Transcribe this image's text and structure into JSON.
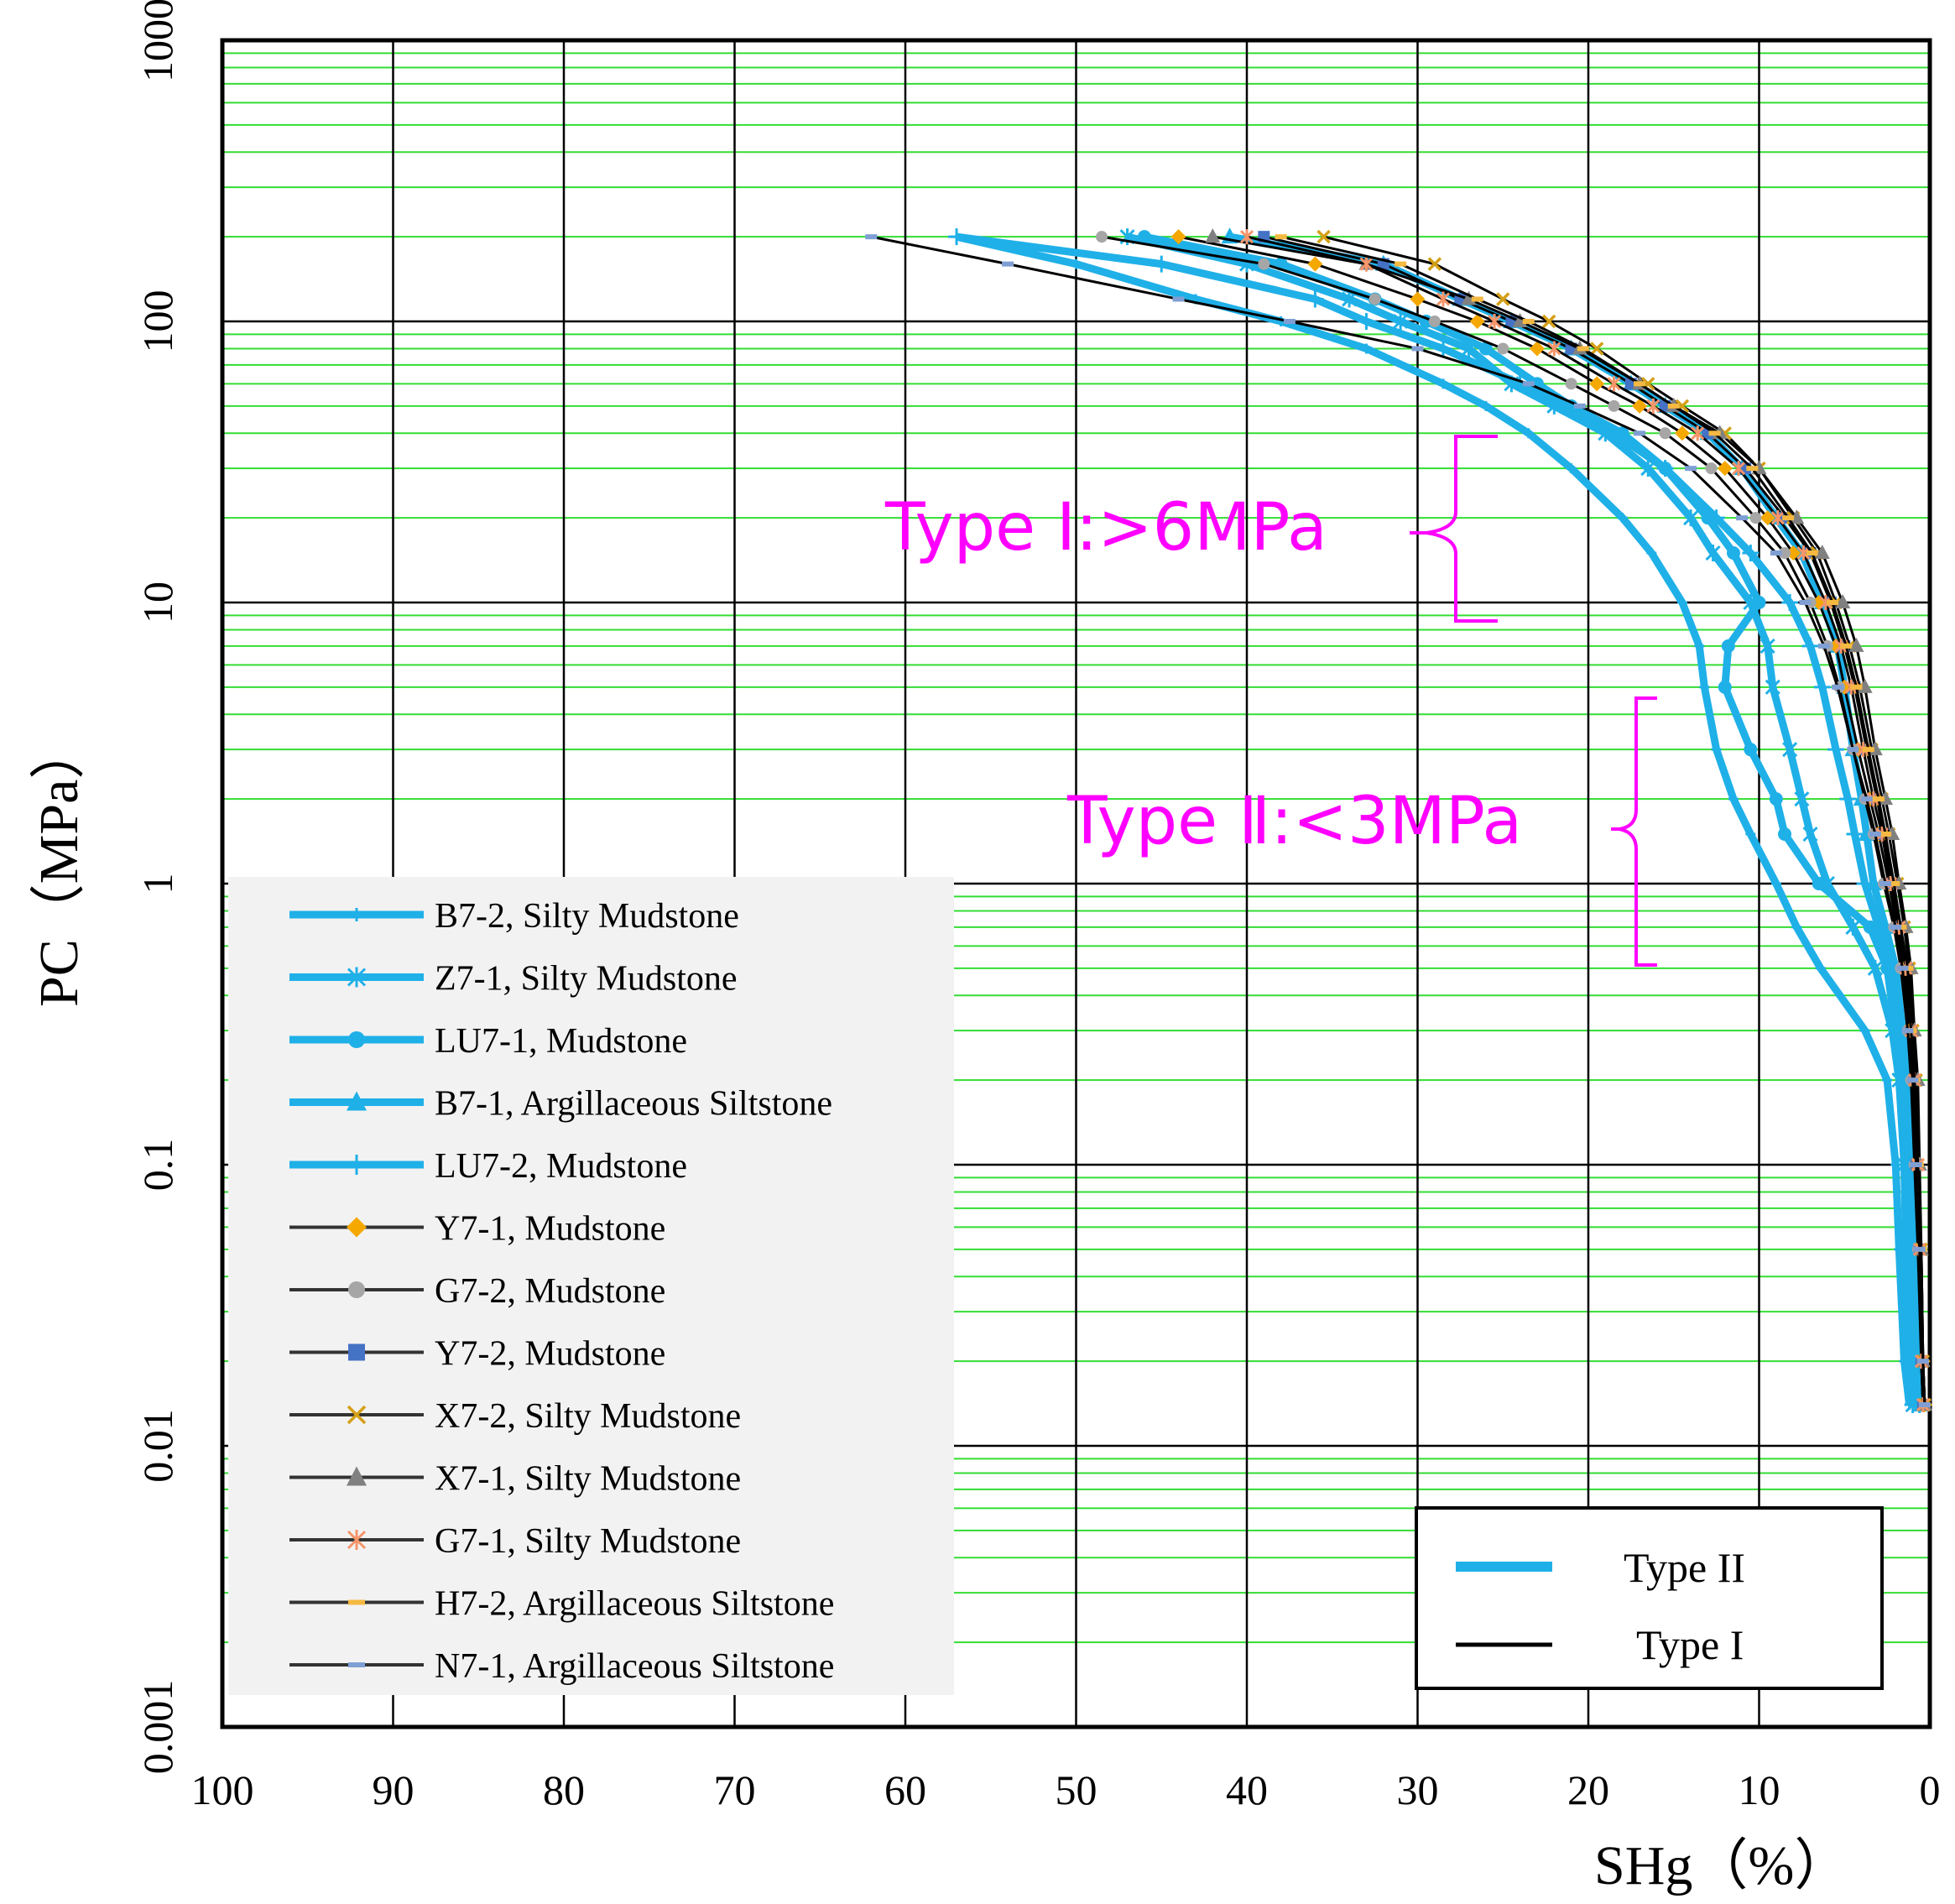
{
  "chart_data": {
    "type": "line",
    "title": "",
    "xlabel": "SHg（%）",
    "ylabel": "PC（MPa）",
    "x_axis": {
      "range": [
        100,
        0
      ],
      "reversed": true,
      "ticks": [
        100,
        90,
        80,
        70,
        60,
        50,
        40,
        30,
        20,
        10,
        0
      ],
      "tick_labels": [
        "100",
        "90",
        "80",
        "70",
        "60",
        "50",
        "40",
        "30",
        "20",
        "10",
        "0"
      ]
    },
    "y_axis": {
      "scale": "log",
      "range": [
        0.001,
        1000
      ],
      "ticks": [
        0.001,
        0.01,
        0.1,
        1,
        10,
        100,
        1000
      ],
      "tick_labels": [
        "0.001",
        "0.01",
        "0.1",
        "1",
        "10",
        "100",
        "1000"
      ]
    },
    "grid": true,
    "pressures": [
      200,
      160,
      120,
      100,
      80,
      60,
      50,
      40,
      30,
      20,
      15,
      10,
      7,
      5,
      3,
      2,
      1.5,
      1,
      0.7,
      0.5,
      0.3,
      0.2,
      0.1,
      0.05,
      0.02,
      0.014
    ],
    "series": [
      {
        "name": "B7-2, Silty Mudstone",
        "type_class": "Type II",
        "color": "#1fb0e8",
        "marker": "plus-small",
        "values": [
          57,
          50,
          43,
          38,
          33,
          28.5,
          26,
          23.5,
          21,
          18,
          16.3,
          14.5,
          13.5,
          13.2,
          12.5,
          11.5,
          10.5,
          9,
          7.8,
          6.4,
          3.8,
          2.5,
          2,
          1.8,
          1.5,
          1.2
        ]
      },
      {
        "name": "Z7-1, Silty Mudstone",
        "type_class": "Type II",
        "color": "#1fb0e8",
        "marker": "asterisk",
        "values": [
          47,
          40,
          34,
          31,
          27,
          24.5,
          22,
          19,
          16.5,
          14,
          12.7,
          10.5,
          9.5,
          9.2,
          8.2,
          7.5,
          7,
          6,
          4.5,
          3.2,
          2.2,
          1.8,
          1.5,
          1.4,
          1.2,
          1
        ]
      },
      {
        "name": "LU7-1, Mudstone",
        "type_class": "Type II",
        "color": "#1fb0e8",
        "marker": "circle",
        "values": [
          46,
          38,
          32.5,
          29.5,
          26,
          23,
          21,
          18,
          15.5,
          13,
          11.5,
          10,
          11.8,
          12,
          10.5,
          9,
          8.5,
          6.5,
          3.5,
          2.5,
          2,
          1.6,
          1.3,
          1.1,
          0.8,
          0.6
        ]
      },
      {
        "name": "B7-1, Argillaceous Siltstone",
        "type_class": "Type II",
        "color": "#1fb0e8",
        "marker": "triangle",
        "values": [
          41,
          32,
          27.5,
          24.5,
          21,
          17.5,
          15.5,
          13,
          11,
          9,
          7.5,
          6.3,
          5.4,
          5,
          4.5,
          4,
          3.7,
          3.3,
          2.6,
          2,
          1.6,
          1.3,
          1.1,
          0.9,
          0.7,
          0.5
        ]
      },
      {
        "name": "LU7-2, Mudstone",
        "type_class": "Type II",
        "color": "#1fb0e8",
        "marker": "plus",
        "values": [
          57,
          45,
          36,
          33,
          28.5,
          24,
          21.5,
          18.5,
          15.5,
          12.5,
          10.5,
          8.2,
          7,
          6.3,
          5.5,
          4.8,
          4.4,
          3.8,
          3,
          2.3,
          1.8,
          1.5,
          1.2,
          1,
          0.8,
          0.6
        ]
      },
      {
        "name": "Y7-1, Mudstone",
        "type_class": "Type I",
        "color": "#f5a800",
        "marker": "diamond",
        "values": [
          44,
          36,
          30,
          26.5,
          23,
          19.5,
          17,
          14.5,
          12,
          9.5,
          8,
          6.5,
          5.5,
          5,
          4.2,
          3.5,
          3,
          2.4,
          1.9,
          1.5,
          1.2,
          1,
          0.8,
          0.6,
          0.4,
          0.3
        ]
      },
      {
        "name": "G7-2, Mudstone",
        "type_class": "Type I",
        "color": "#a6a6a6",
        "marker": "circle",
        "values": [
          48.5,
          39,
          32.5,
          29,
          25,
          21,
          18.5,
          15.5,
          12.8,
          10.2,
          8.5,
          7,
          6,
          5.3,
          4.5,
          3.8,
          3.3,
          2.7,
          2.1,
          1.7,
          1.3,
          1.1,
          0.9,
          0.7,
          0.5,
          0.4
        ]
      },
      {
        "name": "Y7-2, Mudstone",
        "type_class": "Type I",
        "color": "#4472c4",
        "marker": "square",
        "values": [
          39,
          32,
          27.5,
          24.5,
          21,
          17.5,
          15.5,
          13,
          10.8,
          8.5,
          7,
          5.8,
          5,
          4.4,
          3.7,
          3.1,
          2.7,
          2.2,
          1.8,
          1.4,
          1.1,
          0.9,
          0.8,
          0.6,
          0.5,
          0.4
        ]
      },
      {
        "name": "X7-2, Silty Mudstone",
        "type_class": "Type I",
        "color": "#d4a017",
        "marker": "cross",
        "values": [
          35.5,
          29,
          25,
          22.3,
          19.5,
          16.5,
          14.5,
          12,
          10,
          8,
          6.6,
          5.5,
          4.7,
          4.1,
          3.4,
          2.8,
          2.4,
          1.9,
          1.5,
          1.2,
          1,
          0.8,
          0.7,
          0.5,
          0.4,
          0.3
        ]
      },
      {
        "name": "X7-1, Silty Mudstone",
        "type_class": "Type I",
        "color": "#808080",
        "marker": "triangle",
        "values": [
          42,
          33,
          27,
          24,
          20.5,
          17,
          15,
          12.3,
          10,
          7.8,
          6.3,
          5.1,
          4.3,
          3.8,
          3.2,
          2.6,
          2.2,
          1.8,
          1.4,
          1.1,
          0.9,
          0.7,
          0.6,
          0.5,
          0.4,
          0.3
        ]
      },
      {
        "name": "G7-1, Silty Mudstone",
        "type_class": "Type I",
        "color": "#f4956a",
        "marker": "asterisk",
        "values": [
          40,
          33,
          28.5,
          25.5,
          22,
          18.5,
          16.2,
          13.6,
          11.2,
          8.9,
          7.4,
          6.1,
          5.2,
          4.6,
          3.9,
          3.3,
          2.8,
          2.3,
          1.8,
          1.4,
          1.1,
          0.9,
          0.7,
          0.6,
          0.5,
          0.4
        ]
      },
      {
        "name": "H7-2, Argillaceous Siltstone",
        "type_class": "Type I",
        "color": "#f5b942",
        "marker": "dash",
        "values": [
          38,
          31,
          26.5,
          23.5,
          20.3,
          17,
          15,
          12.6,
          10.4,
          8.3,
          6.9,
          5.7,
          4.9,
          4.3,
          3.6,
          3,
          2.6,
          2.1,
          1.7,
          1.3,
          1.1,
          0.9,
          0.7,
          0.5,
          0.4,
          0.3
        ]
      },
      {
        "name": "N7-1, Argillaceous Siltstone",
        "type_class": "Type I",
        "color": "#7f9fd4",
        "marker": "dash",
        "values": [
          62,
          54,
          44,
          37.5,
          30,
          23.5,
          20.5,
          17,
          14,
          11,
          9,
          7.3,
          6.2,
          5.4,
          4.5,
          3.7,
          3.2,
          2.6,
          2,
          1.6,
          1.3,
          1,
          0.8,
          0.6,
          0.4,
          0.3
        ]
      }
    ],
    "type_legend": [
      {
        "label": "Type II",
        "color": "#1fb0e8"
      },
      {
        "label": "Type I",
        "color": "#000000"
      }
    ],
    "annotations": [
      {
        "text": "Type Ⅰ:>6MPa",
        "range_mpa": [
          6,
          60
        ]
      },
      {
        "text": "Type Ⅱ:<3MPa",
        "range_mpa": [
          0.5,
          5
        ]
      }
    ]
  }
}
